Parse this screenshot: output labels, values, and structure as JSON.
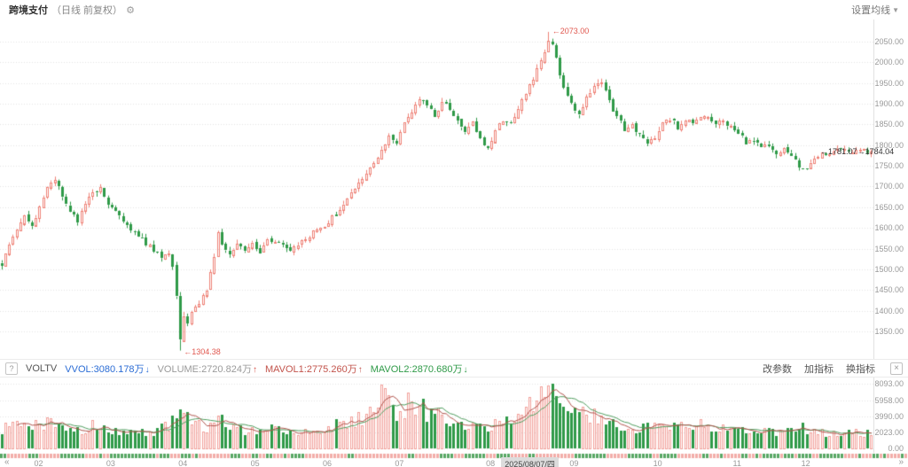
{
  "header": {
    "symbol": "跨境支付",
    "period": "（日线 前复权）",
    "ma_setting_label": "设置均线"
  },
  "indicator_bar": {
    "help_label": "?",
    "name": "VOLTV",
    "items": [
      {
        "label": "VVOL:3080.178万",
        "color": "#2c6dd5",
        "arrow": "↓",
        "arrow_color": "#2c6dd5"
      },
      {
        "label": "VOLUME:2720.824万",
        "color": "#9a9a9a",
        "arrow": "↑",
        "arrow_color": "#d6544a"
      },
      {
        "label": "MAVOL1:2775.260万",
        "color": "#c2534b",
        "arrow": "↑",
        "arrow_color": "#c2534b"
      },
      {
        "label": "MAVOL2:2870.680万",
        "color": "#2f9a48",
        "arrow": "↓",
        "arrow_color": "#2f9a48"
      }
    ],
    "actions": [
      "改参数",
      "加指标",
      "换指标"
    ]
  },
  "timeline": {
    "nav_left": "«",
    "nav_right": "»"
  },
  "chart_data": {
    "type": "candlestick+volume",
    "instrument": "跨境支付",
    "period": "日线 前复权",
    "n_candles": 230,
    "price_axis": {
      "min": 1295,
      "max": 2090,
      "ticks": [
        2050,
        2000,
        1950,
        1900,
        1850,
        1800,
        1750,
        1700,
        1650,
        1600,
        1550,
        1500,
        1450,
        1400,
        1350
      ]
    },
    "volume_axis": {
      "max": 8093,
      "unit": "万",
      "ticks": [
        "8093.00",
        "5958.00",
        "3990.00",
        "2023.00",
        "0.00"
      ]
    },
    "x_labels": [
      {
        "label": "02",
        "i": 9
      },
      {
        "label": "03",
        "i": 28
      },
      {
        "label": "04",
        "i": 47
      },
      {
        "label": "05",
        "i": 66
      },
      {
        "label": "06",
        "i": 85
      },
      {
        "label": "07",
        "i": 104
      },
      {
        "label": "08",
        "i": 128
      },
      {
        "label": "09",
        "i": 150
      },
      {
        "label": "10",
        "i": 172
      },
      {
        "label": "11",
        "i": 193
      },
      {
        "label": "12",
        "i": 211
      }
    ],
    "date_box": {
      "label": "2025/08/07/四",
      "i": 132
    },
    "markers": {
      "high": {
        "i": 144,
        "value": 2073.0,
        "label": "←2073.00"
      },
      "low": {
        "i": 47,
        "value": 1304.38,
        "label": "←1304.38"
      },
      "last": {
        "i": 216,
        "value": 1784.04,
        "label": "←1781.07→1784.04"
      }
    },
    "price_path": [
      [
        0,
        1512
      ],
      [
        2,
        1555
      ],
      [
        4,
        1598
      ],
      [
        6,
        1632
      ],
      [
        8,
        1606
      ],
      [
        10,
        1652
      ],
      [
        12,
        1696
      ],
      [
        14,
        1716
      ],
      [
        16,
        1678
      ],
      [
        18,
        1642
      ],
      [
        20,
        1618
      ],
      [
        22,
        1656
      ],
      [
        24,
        1688
      ],
      [
        26,
        1694
      ],
      [
        28,
        1662
      ],
      [
        30,
        1640
      ],
      [
        32,
        1614
      ],
      [
        34,
        1600
      ],
      [
        36,
        1584
      ],
      [
        38,
        1560
      ],
      [
        40,
        1548
      ],
      [
        42,
        1530
      ],
      [
        44,
        1538
      ],
      [
        45,
        1506
      ],
      [
        46,
        1436
      ],
      [
        47,
        1332
      ],
      [
        48,
        1382
      ],
      [
        49,
        1366
      ],
      [
        50,
        1398
      ],
      [
        52,
        1418
      ],
      [
        54,
        1452
      ],
      [
        56,
        1526
      ],
      [
        57,
        1594
      ],
      [
        58,
        1562
      ],
      [
        60,
        1540
      ],
      [
        62,
        1558
      ],
      [
        64,
        1548
      ],
      [
        66,
        1562
      ],
      [
        68,
        1544
      ],
      [
        70,
        1576
      ],
      [
        72,
        1568
      ],
      [
        74,
        1556
      ],
      [
        76,
        1548
      ],
      [
        78,
        1562
      ],
      [
        80,
        1576
      ],
      [
        82,
        1588
      ],
      [
        84,
        1598
      ],
      [
        86,
        1616
      ],
      [
        88,
        1634
      ],
      [
        90,
        1656
      ],
      [
        92,
        1682
      ],
      [
        94,
        1706
      ],
      [
        96,
        1730
      ],
      [
        98,
        1754
      ],
      [
        100,
        1792
      ],
      [
        102,
        1824
      ],
      [
        104,
        1802
      ],
      [
        106,
        1850
      ],
      [
        108,
        1882
      ],
      [
        110,
        1910
      ],
      [
        112,
        1898
      ],
      [
        114,
        1868
      ],
      [
        116,
        1904
      ],
      [
        118,
        1890
      ],
      [
        120,
        1856
      ],
      [
        122,
        1832
      ],
      [
        124,
        1852
      ],
      [
        126,
        1818
      ],
      [
        128,
        1792
      ],
      [
        130,
        1840
      ],
      [
        132,
        1862
      ],
      [
        134,
        1852
      ],
      [
        136,
        1890
      ],
      [
        138,
        1924
      ],
      [
        140,
        1960
      ],
      [
        142,
        2004
      ],
      [
        143,
        2024
      ],
      [
        144,
        2056
      ],
      [
        145,
        2042
      ],
      [
        146,
        2006
      ],
      [
        147,
        1968
      ],
      [
        148,
        1940
      ],
      [
        150,
        1898
      ],
      [
        152,
        1876
      ],
      [
        154,
        1914
      ],
      [
        156,
        1940
      ],
      [
        158,
        1948
      ],
      [
        160,
        1906
      ],
      [
        162,
        1868
      ],
      [
        164,
        1838
      ],
      [
        166,
        1850
      ],
      [
        168,
        1822
      ],
      [
        170,
        1806
      ],
      [
        172,
        1820
      ],
      [
        174,
        1852
      ],
      [
        176,
        1862
      ],
      [
        178,
        1842
      ],
      [
        180,
        1864
      ],
      [
        182,
        1856
      ],
      [
        184,
        1870
      ],
      [
        186,
        1862
      ],
      [
        188,
        1856
      ],
      [
        190,
        1858
      ],
      [
        192,
        1842
      ],
      [
        194,
        1826
      ],
      [
        196,
        1806
      ],
      [
        198,
        1812
      ],
      [
        200,
        1796
      ],
      [
        202,
        1798
      ],
      [
        204,
        1782
      ],
      [
        206,
        1792
      ],
      [
        208,
        1772
      ],
      [
        210,
        1748
      ],
      [
        212,
        1742
      ],
      [
        214,
        1762
      ],
      [
        216,
        1780
      ],
      [
        218,
        1776
      ],
      [
        220,
        1792
      ],
      [
        222,
        1786
      ],
      [
        224,
        1780
      ],
      [
        226,
        1792
      ],
      [
        228,
        1786
      ],
      [
        229,
        1784
      ]
    ],
    "volume_path": [
      [
        0,
        2400
      ],
      [
        4,
        2900
      ],
      [
        8,
        2600
      ],
      [
        12,
        3400
      ],
      [
        16,
        2500
      ],
      [
        20,
        2200
      ],
      [
        24,
        2800
      ],
      [
        28,
        2400
      ],
      [
        32,
        2100
      ],
      [
        36,
        1900
      ],
      [
        40,
        2100
      ],
      [
        44,
        2800
      ],
      [
        46,
        5200
      ],
      [
        47,
        5600
      ],
      [
        48,
        4400
      ],
      [
        50,
        3200
      ],
      [
        54,
        2600
      ],
      [
        56,
        3500
      ],
      [
        57,
        4300
      ],
      [
        60,
        2600
      ],
      [
        64,
        2200
      ],
      [
        68,
        2400
      ],
      [
        72,
        2300
      ],
      [
        76,
        2000
      ],
      [
        80,
        2200
      ],
      [
        84,
        2500
      ],
      [
        88,
        2900
      ],
      [
        92,
        3300
      ],
      [
        96,
        3900
      ],
      [
        98,
        4300
      ],
      [
        100,
        7900
      ],
      [
        102,
        5200
      ],
      [
        104,
        4500
      ],
      [
        106,
        5100
      ],
      [
        108,
        6100
      ],
      [
        110,
        5400
      ],
      [
        112,
        4400
      ],
      [
        114,
        3700
      ],
      [
        116,
        4300
      ],
      [
        118,
        3700
      ],
      [
        120,
        3200
      ],
      [
        122,
        2900
      ],
      [
        124,
        3100
      ],
      [
        126,
        2700
      ],
      [
        128,
        2500
      ],
      [
        130,
        3100
      ],
      [
        132,
        3300
      ],
      [
        134,
        2900
      ],
      [
        136,
        3700
      ],
      [
        138,
        4500
      ],
      [
        140,
        5700
      ],
      [
        142,
        6500
      ],
      [
        144,
        7900
      ],
      [
        146,
        7100
      ],
      [
        148,
        5600
      ],
      [
        150,
        4900
      ],
      [
        152,
        4300
      ],
      [
        154,
        4700
      ],
      [
        156,
        4100
      ],
      [
        158,
        3700
      ],
      [
        160,
        3400
      ],
      [
        162,
        3100
      ],
      [
        164,
        2900
      ],
      [
        166,
        2700
      ],
      [
        168,
        2500
      ],
      [
        170,
        2700
      ],
      [
        172,
        2900
      ],
      [
        174,
        3300
      ],
      [
        176,
        3000
      ],
      [
        178,
        2700
      ],
      [
        180,
        2900
      ],
      [
        182,
        2700
      ],
      [
        184,
        2900
      ],
      [
        186,
        2700
      ],
      [
        188,
        2500
      ],
      [
        190,
        2700
      ],
      [
        192,
        2500
      ],
      [
        194,
        2300
      ],
      [
        196,
        2100
      ],
      [
        198,
        2300
      ],
      [
        200,
        2100
      ],
      [
        202,
        2300
      ],
      [
        204,
        2100
      ],
      [
        206,
        2300
      ],
      [
        208,
        2500
      ],
      [
        210,
        2700
      ],
      [
        212,
        2300
      ],
      [
        214,
        2100
      ],
      [
        216,
        2000
      ],
      [
        218,
        1900
      ],
      [
        220,
        2100
      ],
      [
        222,
        2000
      ],
      [
        224,
        1900
      ],
      [
        226,
        2000
      ],
      [
        228,
        1900
      ],
      [
        229,
        1850
      ]
    ],
    "colors": {
      "up": "#ee8277",
      "down": "#2f9a48",
      "up_vol": "#f2a19b",
      "mavol1": "#b0544c",
      "mavol2": "#4f9d5e",
      "grid": "#e5e5e5",
      "strip_up": "#f2aeaa",
      "strip_down": "#58a764",
      "annotation": "#e0574e"
    },
    "seed": 7,
    "last_close": 1784.04
  }
}
